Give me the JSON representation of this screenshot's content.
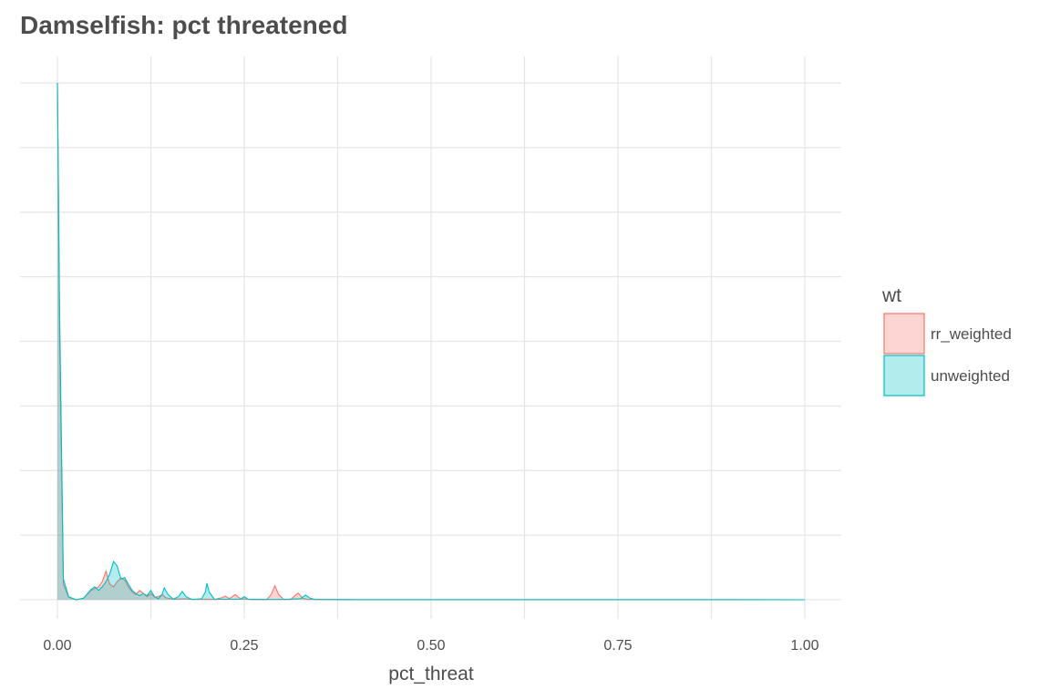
{
  "chart_data": {
    "type": "area",
    "title": "Damselfish: pct threatened",
    "xlabel": "pct_threat",
    "ylabel": "",
    "xlim": [
      0,
      1
    ],
    "ylim": [
      0,
      100
    ],
    "x_ticks": [
      "0.00",
      "0.25",
      "0.50",
      "0.75",
      "1.00"
    ],
    "y_ticks": [],
    "grid": true,
    "legend": {
      "title": "wt",
      "position": "right",
      "entries": [
        "rr_weighted",
        "unweighted"
      ]
    },
    "series": [
      {
        "name": "rr_weighted",
        "color": "#F8766D",
        "fill": "#F8766D",
        "points": [
          [
            0.0,
            100
          ],
          [
            0.003,
            50
          ],
          [
            0.008,
            3
          ],
          [
            0.015,
            0.5
          ],
          [
            0.025,
            0
          ],
          [
            0.035,
            0.3
          ],
          [
            0.045,
            1.8
          ],
          [
            0.055,
            2.5
          ],
          [
            0.06,
            3.5
          ],
          [
            0.065,
            5.5
          ],
          [
            0.07,
            3
          ],
          [
            0.075,
            2.5
          ],
          [
            0.08,
            3.5
          ],
          [
            0.085,
            4.2
          ],
          [
            0.09,
            3.8
          ],
          [
            0.095,
            2.5
          ],
          [
            0.1,
            1.5
          ],
          [
            0.105,
            1.0
          ],
          [
            0.11,
            1.8
          ],
          [
            0.115,
            1.2
          ],
          [
            0.12,
            0.6
          ],
          [
            0.125,
            1.2
          ],
          [
            0.13,
            0.5
          ],
          [
            0.135,
            0.6
          ],
          [
            0.14,
            1.0
          ],
          [
            0.145,
            0.4
          ],
          [
            0.155,
            0.1
          ],
          [
            0.17,
            0.2
          ],
          [
            0.185,
            0.05
          ],
          [
            0.2,
            0.1
          ],
          [
            0.21,
            0.05
          ],
          [
            0.22,
            0.4
          ],
          [
            0.225,
            0.7
          ],
          [
            0.23,
            0.2
          ],
          [
            0.238,
            1.0
          ],
          [
            0.245,
            0.2
          ],
          [
            0.26,
            0.05
          ],
          [
            0.28,
            0.05
          ],
          [
            0.286,
            1.0
          ],
          [
            0.291,
            2.7
          ],
          [
            0.296,
            1.0
          ],
          [
            0.303,
            0.05
          ],
          [
            0.312,
            0.05
          ],
          [
            0.318,
            0.8
          ],
          [
            0.322,
            1.3
          ],
          [
            0.328,
            0.3
          ],
          [
            0.335,
            0.05
          ],
          [
            0.35,
            0.05
          ],
          [
            0.4,
            0.02
          ],
          [
            0.5,
            0.02
          ],
          [
            0.6,
            0.02
          ],
          [
            0.7,
            0.01
          ],
          [
            0.8,
            0.01
          ],
          [
            0.9,
            0.01
          ],
          [
            1.0,
            0
          ]
        ]
      },
      {
        "name": "unweighted",
        "color": "#00BFC4",
        "fill": "#00BFC4",
        "points": [
          [
            0.0,
            100
          ],
          [
            0.003,
            55
          ],
          [
            0.008,
            4
          ],
          [
            0.015,
            0.6
          ],
          [
            0.025,
            0
          ],
          [
            0.035,
            0.3
          ],
          [
            0.045,
            2.0
          ],
          [
            0.05,
            2.5
          ],
          [
            0.055,
            1.8
          ],
          [
            0.06,
            2.5
          ],
          [
            0.065,
            3.5
          ],
          [
            0.07,
            5.0
          ],
          [
            0.075,
            7.4
          ],
          [
            0.08,
            6.5
          ],
          [
            0.085,
            4.0
          ],
          [
            0.09,
            4.3
          ],
          [
            0.095,
            3.0
          ],
          [
            0.1,
            1.8
          ],
          [
            0.105,
            1.2
          ],
          [
            0.11,
            0.8
          ],
          [
            0.115,
            1.2
          ],
          [
            0.12,
            0.8
          ],
          [
            0.125,
            1.8
          ],
          [
            0.13,
            0.6
          ],
          [
            0.135,
            0.2
          ],
          [
            0.14,
            1.0
          ],
          [
            0.143,
            2.3
          ],
          [
            0.148,
            1.0
          ],
          [
            0.155,
            0.1
          ],
          [
            0.162,
            0.6
          ],
          [
            0.167,
            1.6
          ],
          [
            0.172,
            0.6
          ],
          [
            0.18,
            0.05
          ],
          [
            0.193,
            0.2
          ],
          [
            0.198,
            1.5
          ],
          [
            0.2,
            3.2
          ],
          [
            0.203,
            1.5
          ],
          [
            0.21,
            0.1
          ],
          [
            0.22,
            0.1
          ],
          [
            0.245,
            0.1
          ],
          [
            0.25,
            0.6
          ],
          [
            0.255,
            0.1
          ],
          [
            0.27,
            0.05
          ],
          [
            0.3,
            0.05
          ],
          [
            0.325,
            0.2
          ],
          [
            0.332,
            0.9
          ],
          [
            0.338,
            0.3
          ],
          [
            0.345,
            0.05
          ],
          [
            0.4,
            0.02
          ],
          [
            0.5,
            0.02
          ],
          [
            0.6,
            0.02
          ],
          [
            0.7,
            0.01
          ],
          [
            0.8,
            0.01
          ],
          [
            0.9,
            0.01
          ],
          [
            1.0,
            0
          ]
        ]
      }
    ]
  }
}
